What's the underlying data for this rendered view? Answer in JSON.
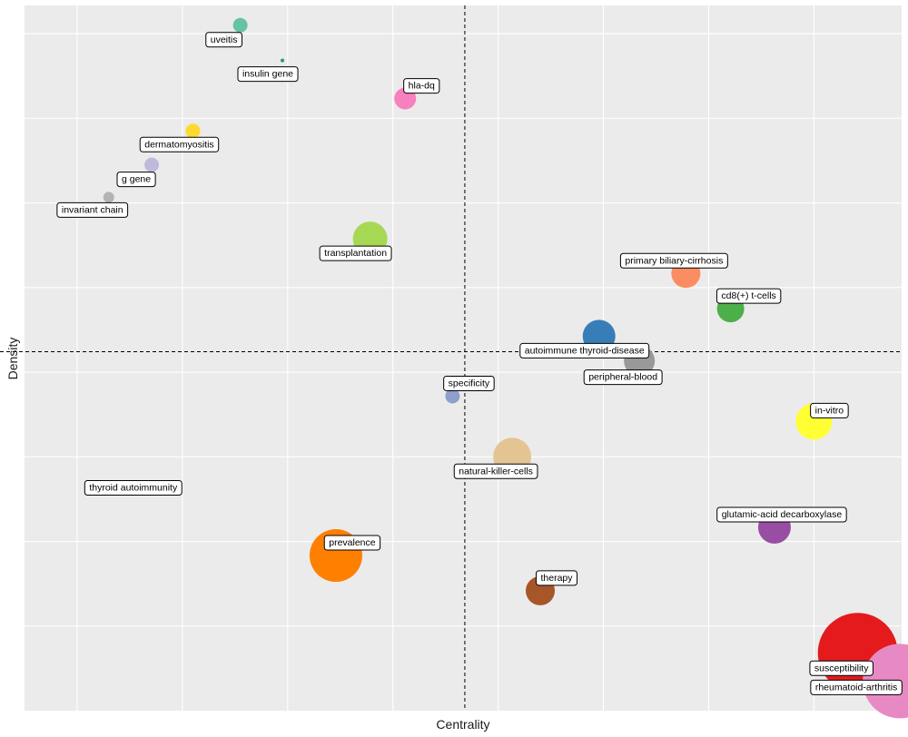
{
  "chart_data": {
    "type": "scatter",
    "title": "",
    "xlabel": "Centrality",
    "ylabel": "Density",
    "grid": true,
    "legend": "none",
    "xlim": [
      0,
      100
    ],
    "ylim": [
      0,
      100
    ],
    "reference_lines": {
      "x": 50.2,
      "y": 50.9
    },
    "points": [
      {
        "label": "uveitis",
        "x": 24.6,
        "y": 97.2,
        "size": 8,
        "color": "#66C2A5",
        "label_dx": -18,
        "label_dy": 16
      },
      {
        "label": "insulin gene",
        "x": 29.4,
        "y": 92.2,
        "size": 2,
        "color": "#1B9E77",
        "label_dx": -16,
        "label_dy": 15
      },
      {
        "label": "hla-dq",
        "x": 43.4,
        "y": 86.8,
        "size": 12,
        "color": "#F781BF",
        "label_dx": 18,
        "label_dy": -14
      },
      {
        "label": "dermatomyositis",
        "x": 19.2,
        "y": 82.2,
        "size": 8,
        "color": "#FFD92F",
        "label_dx": -15,
        "label_dy": 15
      },
      {
        "label": "g gene",
        "x": 14.5,
        "y": 77.4,
        "size": 8,
        "color": "#BEBADA",
        "label_dx": -17,
        "label_dy": 16
      },
      {
        "label": "invariant chain",
        "x": 9.6,
        "y": 72.8,
        "size": 6,
        "color": "#B3B3B3",
        "label_dx": -18,
        "label_dy": 14
      },
      {
        "label": "transplantation",
        "x": 39.4,
        "y": 66.9,
        "size": 19,
        "color": "#A6D854",
        "label_dx": -16,
        "label_dy": 16
      },
      {
        "label": "primary biliary-cirrhosis",
        "x": 75.4,
        "y": 62.0,
        "size": 16,
        "color": "#FC8D62",
        "label_dx": -13,
        "label_dy": -14
      },
      {
        "label": "cd8(+) t-cells",
        "x": 80.5,
        "y": 57.0,
        "size": 15,
        "color": "#4DAF4A",
        "label_dx": 20,
        "label_dy": -14
      },
      {
        "label": "autoimmune thyroid-disease",
        "x": 65.5,
        "y": 53.1,
        "size": 18,
        "color": "#377EB8",
        "label_dx": -16,
        "label_dy": 16
      },
      {
        "label": "peripheral-blood",
        "x": 70.1,
        "y": 49.6,
        "size": 17,
        "color": "#999999",
        "label_dx": -18,
        "label_dy": 18
      },
      {
        "label": "specificity",
        "x": 48.8,
        "y": 44.6,
        "size": 8,
        "color": "#8DA0CB",
        "label_dx": 18,
        "label_dy": -14
      },
      {
        "label": "in-vitro",
        "x": 90.0,
        "y": 41.0,
        "size": 20,
        "color": "#FFFF33",
        "label_dx": 17,
        "label_dy": -12
      },
      {
        "label": "natural-killer-cells",
        "x": 55.6,
        "y": 36.0,
        "size": 21,
        "color": "#E5C494",
        "label_dx": -18,
        "label_dy": 16
      },
      {
        "label": "thyroid autoimmunity",
        "x": 12.4,
        "y": 31.6,
        "size": 0,
        "color": "#FFFFFF",
        "label_dx": 0,
        "label_dy": 0
      },
      {
        "label": "glutamic-acid decarboxylase",
        "x": 85.5,
        "y": 26.0,
        "size": 18,
        "color": "#984EA3",
        "label_dx": 8,
        "label_dy": -14
      },
      {
        "label": "prevalence",
        "x": 35.5,
        "y": 22.0,
        "size": 29,
        "color": "#FF7F00",
        "label_dx": 18,
        "label_dy": -14
      },
      {
        "label": "therapy",
        "x": 58.8,
        "y": 17.0,
        "size": 16,
        "color": "#A65628",
        "label_dx": 18,
        "label_dy": -14
      },
      {
        "label": "susceptibility",
        "x": 95.0,
        "y": 8.2,
        "size": 44,
        "color": "#E41A1C",
        "label_dx": -18,
        "label_dy": 17
      },
      {
        "label": "rheumatoid-arthritis",
        "x": 99.8,
        "y": 4.2,
        "size": 41,
        "color": "#E78AC3",
        "label_dx": -48,
        "label_dy": 7
      }
    ]
  }
}
